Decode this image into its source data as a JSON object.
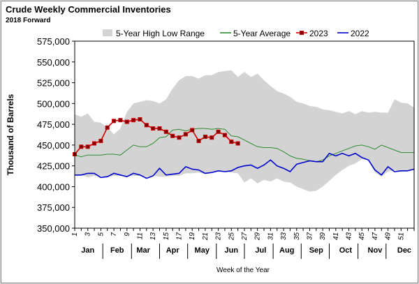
{
  "header": {
    "title": "Crude Weekly Commercial  Inventories",
    "subtitle": "2018 Forward"
  },
  "chart_data": {
    "type": "line",
    "xlabel": "Week of the Year",
    "ylabel": "Thousand of Barrels",
    "ylim": [
      350000,
      575000
    ],
    "yticks": [
      350000,
      375000,
      400000,
      425000,
      450000,
      475000,
      500000,
      525000,
      550000,
      575000
    ],
    "xlim": [
      1,
      53
    ],
    "week_ticks": [
      "1",
      "3",
      "5",
      "7",
      "9",
      "11",
      "13",
      "15",
      "17",
      "19",
      "21",
      "23",
      "25",
      "27",
      "29",
      "31",
      "33",
      "35",
      "37",
      "39",
      "41",
      "43",
      "45",
      "47",
      "49",
      "51"
    ],
    "months": [
      {
        "label": "Jan",
        "week": 3
      },
      {
        "label": "Feb",
        "week": 7.5
      },
      {
        "label": "Mar",
        "week": 11.5
      },
      {
        "label": "Apr",
        "week": 16
      },
      {
        "label": "May",
        "week": 20.5
      },
      {
        "label": "Jun",
        "week": 25
      },
      {
        "label": "Jul",
        "week": 29.5
      },
      {
        "label": "Aug",
        "week": 33.5
      },
      {
        "label": "Sep",
        "week": 38
      },
      {
        "label": "Oct",
        "week": 42.5
      },
      {
        "label": "Nov",
        "week": 47
      },
      {
        "label": "Dec",
        "week": 51.5
      }
    ],
    "legend_position": "top",
    "grid": false,
    "series": [
      {
        "name": "5-Year High Low Range",
        "kind": "band",
        "color": "#d3d3d3",
        "x": [
          1,
          2,
          3,
          4,
          5,
          6,
          7,
          8,
          9,
          10,
          11,
          12,
          13,
          14,
          15,
          16,
          17,
          18,
          19,
          20,
          21,
          22,
          23,
          24,
          25,
          26,
          27,
          28,
          29,
          30,
          31,
          32,
          33,
          34,
          35,
          36,
          37,
          38,
          39,
          40,
          41,
          42,
          43,
          44,
          45,
          46,
          47,
          48,
          49,
          50,
          51,
          52,
          53
        ],
        "high": [
          487000,
          484000,
          488000,
          478000,
          477000,
          471000,
          463000,
          470000,
          490000,
          500000,
          502000,
          504000,
          503000,
          500000,
          505000,
          518000,
          528000,
          533000,
          533000,
          530000,
          534000,
          534000,
          538000,
          539000,
          540000,
          532000,
          538000,
          532000,
          536000,
          528000,
          521000,
          515000,
          512000,
          508000,
          502000,
          500000,
          497000,
          496000,
          493000,
          492000,
          490000,
          488000,
          491000,
          487000,
          491000,
          489000,
          490000,
          489000,
          489000,
          505000,
          501000,
          500000,
          495000
        ],
        "low": [
          414000,
          414000,
          411000,
          413000,
          413000,
          411000,
          413000,
          413000,
          412000,
          413000,
          413000,
          412000,
          413000,
          412000,
          412000,
          413000,
          413000,
          416000,
          416000,
          417000,
          415000,
          418000,
          419000,
          418000,
          417000,
          416000,
          405000,
          410000,
          404000,
          408000,
          406000,
          410000,
          406000,
          405000,
          400000,
          397000,
          394000,
          395000,
          400000,
          407000,
          414000,
          420000,
          425000,
          428000,
          433000,
          432000,
          417000,
          412000,
          418000,
          420000,
          418000,
          419000,
          420000
        ]
      },
      {
        "name": "5-Year Average",
        "color": "#2e8b2e",
        "x": [
          1,
          2,
          3,
          4,
          5,
          6,
          7,
          8,
          9,
          10,
          11,
          12,
          13,
          14,
          15,
          16,
          17,
          18,
          19,
          20,
          21,
          22,
          23,
          24,
          25,
          26,
          27,
          28,
          29,
          30,
          31,
          32,
          33,
          34,
          35,
          36,
          37,
          38,
          39,
          40,
          41,
          42,
          43,
          44,
          45,
          46,
          47,
          48,
          49,
          50,
          51,
          52,
          53
        ],
        "values": [
          438000,
          436000,
          438000,
          438000,
          438000,
          439000,
          439000,
          438000,
          444000,
          450000,
          448000,
          448000,
          452000,
          459000,
          460000,
          468000,
          469000,
          467000,
          469000,
          470000,
          470000,
          469000,
          470000,
          469000,
          461000,
          460000,
          456000,
          452000,
          448000,
          447000,
          447000,
          446000,
          442000,
          437000,
          434000,
          433000,
          431000,
          430000,
          432000,
          437000,
          440000,
          443000,
          446000,
          449000,
          450000,
          448000,
          445000,
          450000,
          447000,
          444000,
          441000,
          441000,
          441000
        ]
      },
      {
        "name": "2023",
        "color": "#cc0000",
        "marker_color": "#7a0000",
        "x": [
          1,
          2,
          3,
          4,
          5,
          6,
          7,
          8,
          9,
          10,
          11,
          12,
          13,
          14,
          15,
          16,
          17,
          18,
          19,
          20,
          21,
          22,
          23,
          24,
          25,
          26
        ],
        "values": [
          439000,
          448000,
          448000,
          452000,
          455000,
          471000,
          479000,
          480000,
          478000,
          480000,
          481000,
          474000,
          470000,
          470000,
          466000,
          461000,
          459000,
          463000,
          468000,
          455000,
          460000,
          459000,
          466000,
          462000,
          454000,
          452000
        ]
      },
      {
        "name": "2022",
        "color": "#0000cc",
        "x": [
          1,
          2,
          3,
          4,
          5,
          6,
          7,
          8,
          9,
          10,
          11,
          12,
          13,
          14,
          15,
          16,
          17,
          18,
          19,
          20,
          21,
          22,
          23,
          24,
          25,
          26,
          27,
          28,
          29,
          30,
          31,
          32,
          33,
          34,
          35,
          36,
          37,
          38,
          39,
          40,
          41,
          42,
          43,
          44,
          45,
          46,
          47,
          48,
          49,
          50,
          51,
          52,
          53
        ],
        "values": [
          414000,
          414000,
          416000,
          416000,
          411000,
          412000,
          416000,
          414000,
          412000,
          416000,
          414000,
          410000,
          413000,
          422000,
          414000,
          415000,
          416000,
          424000,
          421000,
          420000,
          416000,
          417000,
          419000,
          418000,
          419000,
          423000,
          425000,
          426000,
          422000,
          426000,
          432000,
          425000,
          422000,
          418000,
          427000,
          429000,
          431000,
          430000,
          430000,
          440000,
          437000,
          440000,
          437000,
          440000,
          435000,
          432000,
          420000,
          414000,
          424000,
          418000,
          419000,
          419000,
          421000
        ]
      }
    ]
  }
}
